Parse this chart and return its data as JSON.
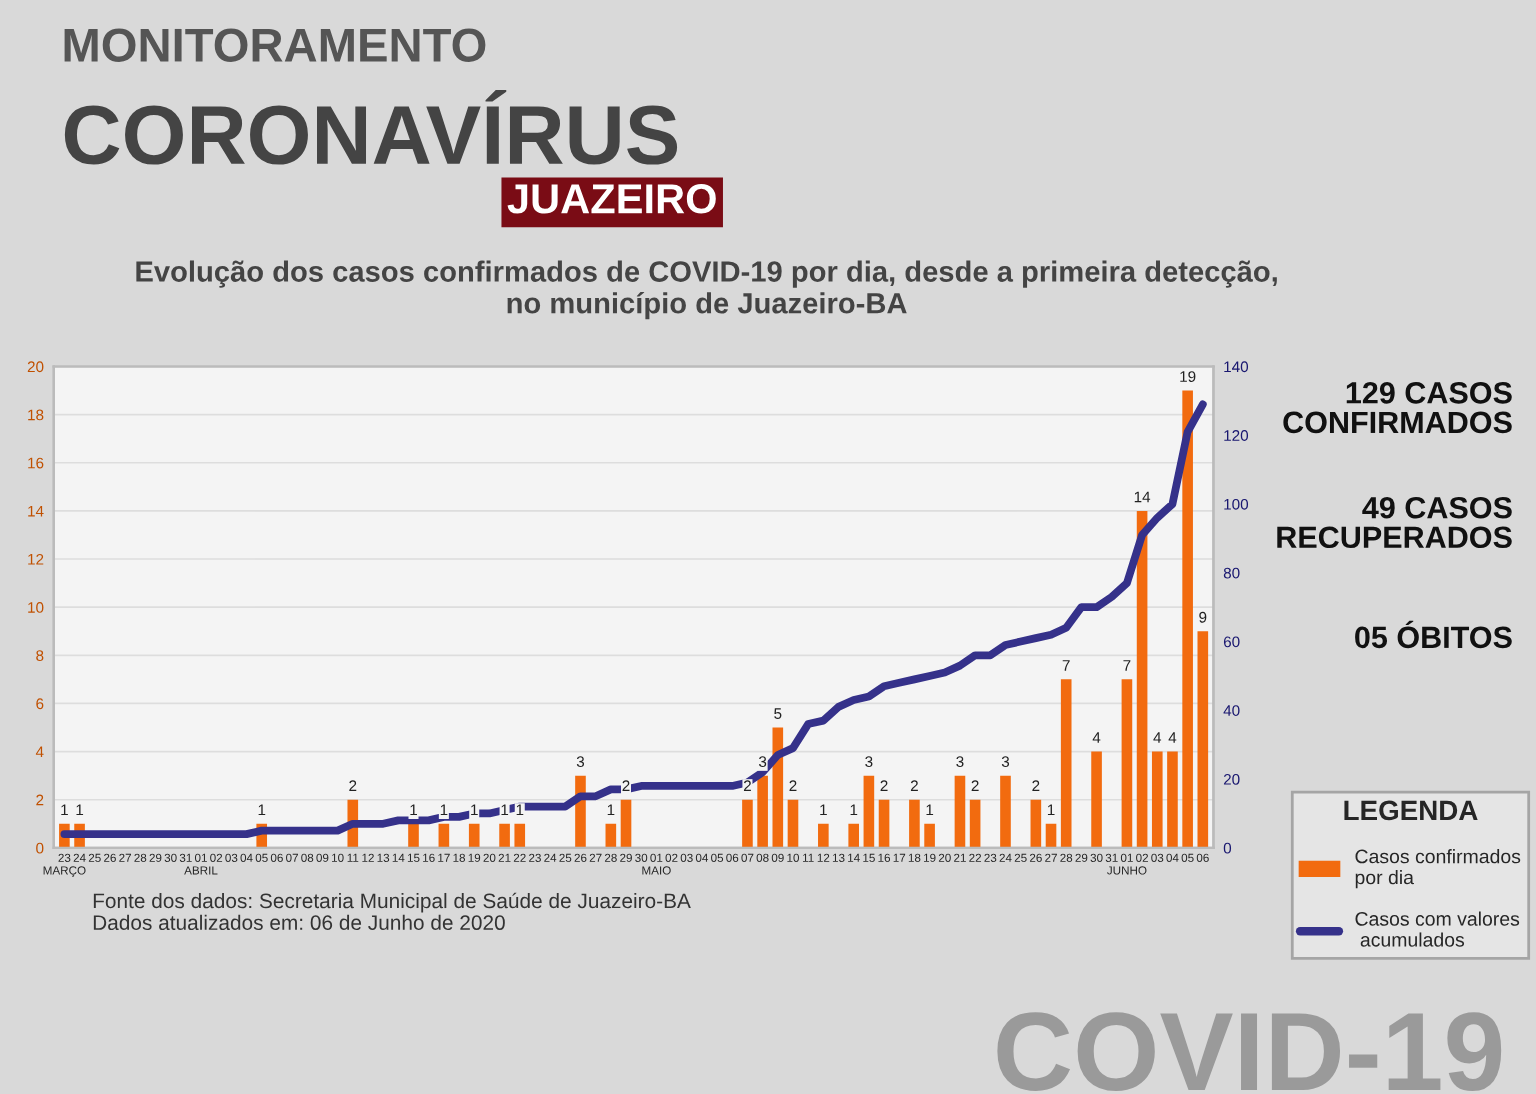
{
  "chart_data": {
    "type": "bar",
    "title": "MONITORAMENTO\nCORONAVÍRUS\nJUAZEIRO",
    "subtitle": "Evolução dos casos confirmados de COVID-19 por dia, desde a primeira detecção,\nno município de Juazeiro-BA",
    "categories": [
      "23\nMARÇO",
      "24",
      "25",
      "26",
      "27",
      "28",
      "29",
      "30",
      "31",
      "01\nABRIL",
      "02",
      "03",
      "04",
      "05",
      "06",
      "07",
      "08",
      "09",
      "10",
      "11",
      "12",
      "13",
      "14",
      "15",
      "16",
      "17",
      "18",
      "19",
      "20",
      "21",
      "22",
      "23",
      "24",
      "25",
      "26",
      "27",
      "28",
      "29",
      "30",
      "01\nMAIO",
      "02",
      "03",
      "04",
      "05",
      "06",
      "07",
      "08",
      "09",
      "10",
      "11",
      "12",
      "13",
      "14",
      "15",
      "16",
      "17",
      "18",
      "19",
      "20",
      "21",
      "22",
      "23",
      "24",
      "25",
      "26",
      "27",
      "28",
      "29",
      "30",
      "31",
      "01\nJUNHO",
      "02",
      "03",
      "04",
      "05",
      "06"
    ],
    "series": [
      {
        "name": "Casos confirmados por dia",
        "color": "#f26b0f",
        "values": [
          1,
          1,
          0,
          0,
          0,
          0,
          0,
          0,
          0,
          0,
          0,
          0,
          0,
          1,
          0,
          0,
          0,
          0,
          0,
          2,
          0,
          0,
          0,
          1,
          0,
          1,
          0,
          1,
          0,
          1,
          1,
          0,
          0,
          0,
          3,
          0,
          1,
          2,
          0,
          0,
          0,
          0,
          0,
          0,
          0,
          2,
          3,
          5,
          2,
          0,
          1,
          0,
          1,
          3,
          2,
          0,
          2,
          1,
          0,
          3,
          2,
          0,
          3,
          0,
          2,
          1,
          7,
          0,
          4,
          0,
          7,
          14,
          4,
          4,
          19,
          9
        ],
        "value_labels": [
          "1",
          "1",
          null,
          null,
          null,
          null,
          null,
          null,
          null,
          null,
          null,
          null,
          null,
          "1",
          null,
          null,
          null,
          null,
          null,
          "2",
          null,
          null,
          null,
          "1",
          null,
          "1",
          null,
          "1",
          null,
          "1",
          "1",
          null,
          null,
          null,
          "3",
          null,
          "1",
          "2",
          null,
          null,
          null,
          null,
          null,
          null,
          null,
          "2",
          "3",
          "5",
          "2",
          null,
          "1",
          null,
          "1",
          "3",
          "2",
          null,
          "2",
          "1",
          null,
          "3",
          "2",
          null,
          "3",
          null,
          "2",
          "1",
          "7",
          null,
          "4",
          null,
          "7",
          "14",
          "4",
          "4",
          "19",
          "9"
        ]
      },
      {
        "name": "Casos com valores acumulados",
        "type": "line",
        "axis": "y2",
        "color": "#35318a",
        "values": [
          4,
          4,
          4,
          4,
          4,
          4,
          4,
          4,
          4,
          4,
          4,
          4,
          4,
          5,
          5,
          5,
          5,
          5,
          5,
          7,
          7,
          7,
          8,
          8,
          8,
          9,
          9,
          10,
          10,
          11,
          12,
          12,
          12,
          12,
          15,
          15,
          17,
          17,
          18,
          18,
          18,
          18,
          18,
          18,
          18,
          19,
          22,
          27,
          29,
          36,
          37,
          41,
          43,
          44,
          47,
          48,
          49,
          50,
          51,
          53,
          56,
          56,
          59,
          60,
          61,
          62,
          64,
          70,
          70,
          73,
          77,
          91,
          96,
          100,
          121,
          129
        ]
      }
    ],
    "ylim": [
      0,
      20
    ],
    "yticks": [
      0,
      2,
      4,
      6,
      8,
      10,
      12,
      14,
      16,
      18,
      20
    ],
    "y2lim": [
      0,
      140
    ],
    "y2ticks": [
      0,
      20,
      40,
      60,
      80,
      100,
      120,
      140
    ],
    "grid": "y",
    "legend": "right",
    "legend_title": "LEGENDA",
    "annotations": [
      "129 CASOS CONFIRMADOS",
      "49 CASOS RECUPERADOS",
      "05 ÓBITOS",
      "Fonte dos dados: Secretaria Municipal de Saúde de Juazeiro-BA",
      "Dados atualizados em: 06 de Junho de 2020",
      "COVID-19"
    ]
  }
}
